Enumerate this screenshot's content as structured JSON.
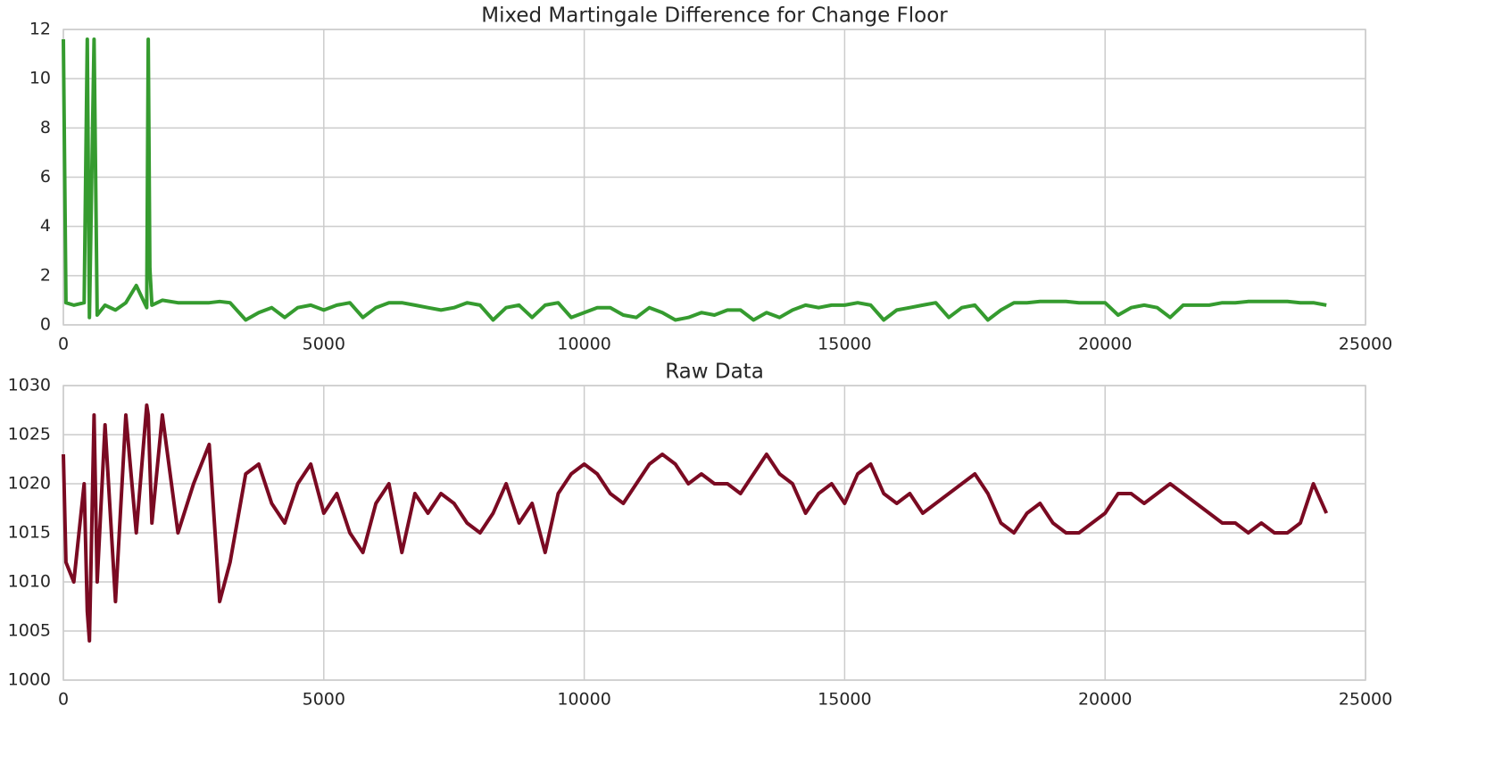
{
  "chart_data": [
    {
      "type": "line",
      "title": "Mixed Martingale Difference for Change Floor",
      "x": [
        0,
        50,
        200,
        400,
        460,
        500,
        590,
        650,
        800,
        1000,
        1200,
        1400,
        1600,
        1630,
        1660,
        1700,
        1900,
        2200,
        2500,
        2800,
        3000,
        3200,
        3500,
        3750,
        4000,
        4250,
        4500,
        4750,
        5000,
        5250,
        5500,
        5750,
        6000,
        6250,
        6500,
        6750,
        7000,
        7250,
        7500,
        7750,
        8000,
        8250,
        8500,
        8750,
        9000,
        9250,
        9500,
        9750,
        10000,
        10250,
        10500,
        10750,
        11000,
        11250,
        11500,
        11750,
        12000,
        12250,
        12500,
        12750,
        13000,
        13250,
        13500,
        13750,
        14000,
        14250,
        14500,
        14750,
        15000,
        15250,
        15500,
        15750,
        16000,
        16250,
        16500,
        16750,
        17000,
        17250,
        17500,
        17750,
        18000,
        18250,
        18500,
        18750,
        19000,
        19250,
        19500,
        19750,
        20000,
        20250,
        20500,
        20750,
        21000,
        21250,
        21500,
        21750,
        22000,
        22250,
        22500,
        22750,
        23000,
        23250,
        23500,
        23750,
        24000,
        24250
      ],
      "series": [
        {
          "color": "#359b2f",
          "values": [
            11.6,
            0.9,
            0.8,
            0.9,
            11.6,
            0.3,
            11.6,
            0.4,
            0.8,
            0.6,
            0.9,
            1.6,
            0.7,
            11.6,
            2.3,
            0.8,
            1.0,
            0.9,
            0.9,
            0.9,
            0.95,
            0.9,
            0.2,
            0.5,
            0.7,
            0.3,
            0.7,
            0.8,
            0.6,
            0.8,
            0.9,
            0.3,
            0.7,
            0.9,
            0.9,
            0.8,
            0.7,
            0.6,
            0.7,
            0.9,
            0.8,
            0.2,
            0.7,
            0.8,
            0.3,
            0.8,
            0.9,
            0.3,
            0.5,
            0.7,
            0.7,
            0.4,
            0.3,
            0.7,
            0.5,
            0.2,
            0.3,
            0.5,
            0.4,
            0.6,
            0.6,
            0.2,
            0.5,
            0.3,
            0.6,
            0.8,
            0.7,
            0.8,
            0.8,
            0.9,
            0.8,
            0.2,
            0.6,
            0.7,
            0.8,
            0.9,
            0.3,
            0.7,
            0.8,
            0.2,
            0.6,
            0.9,
            0.9,
            0.95,
            0.95,
            0.95,
            0.9,
            0.9,
            0.9,
            0.4,
            0.7,
            0.8,
            0.7,
            0.3,
            0.8,
            0.8,
            0.8,
            0.9,
            0.9,
            0.95,
            0.95,
            0.95,
            0.95,
            0.9,
            0.9,
            0.8
          ]
        }
      ],
      "xlim": [
        0,
        25000
      ],
      "xticks": [
        0,
        5000,
        10000,
        15000,
        20000,
        25000
      ],
      "ylim": [
        0,
        12
      ],
      "yticks": [
        0,
        2,
        4,
        6,
        8,
        10,
        12
      ],
      "grid": true
    },
    {
      "type": "line",
      "title": "Raw Data",
      "x": [
        0,
        50,
        200,
        400,
        460,
        500,
        590,
        650,
        800,
        1000,
        1200,
        1400,
        1600,
        1630,
        1660,
        1700,
        1900,
        2200,
        2500,
        2800,
        3000,
        3200,
        3500,
        3750,
        4000,
        4250,
        4500,
        4750,
        5000,
        5250,
        5500,
        5750,
        6000,
        6250,
        6500,
        6750,
        7000,
        7250,
        7500,
        7750,
        8000,
        8250,
        8500,
        8750,
        9000,
        9250,
        9500,
        9750,
        10000,
        10250,
        10500,
        10750,
        11000,
        11250,
        11500,
        11750,
        12000,
        12250,
        12500,
        12750,
        13000,
        13250,
        13500,
        13750,
        14000,
        14250,
        14500,
        14750,
        15000,
        15250,
        15500,
        15750,
        16000,
        16250,
        16500,
        16750,
        17000,
        17250,
        17500,
        17750,
        18000,
        18250,
        18500,
        18750,
        19000,
        19250,
        19500,
        19750,
        20000,
        20250,
        20500,
        20750,
        21000,
        21250,
        21500,
        21750,
        22000,
        22250,
        22500,
        22750,
        23000,
        23250,
        23500,
        23750,
        24000,
        24250
      ],
      "series": [
        {
          "color": "#7a0a22",
          "values": [
            1023,
            1012,
            1010,
            1020,
            1007,
            1004,
            1027,
            1010,
            1026,
            1008,
            1027,
            1015,
            1028,
            1027,
            1022,
            1016,
            1027,
            1015,
            1020,
            1024,
            1008,
            1012,
            1021,
            1022,
            1018,
            1016,
            1020,
            1022,
            1017,
            1019,
            1015,
            1013,
            1018,
            1020,
            1013,
            1019,
            1017,
            1019,
            1018,
            1016,
            1015,
            1017,
            1020,
            1016,
            1018,
            1013,
            1019,
            1021,
            1022,
            1021,
            1019,
            1018,
            1020,
            1022,
            1023,
            1022,
            1020,
            1021,
            1020,
            1020,
            1019,
            1021,
            1023,
            1021,
            1020,
            1017,
            1019,
            1020,
            1018,
            1021,
            1022,
            1019,
            1018,
            1019,
            1017,
            1018,
            1019,
            1020,
            1021,
            1019,
            1016,
            1015,
            1017,
            1018,
            1016,
            1015,
            1015,
            1016,
            1017,
            1019,
            1019,
            1018,
            1019,
            1020,
            1019,
            1018,
            1017,
            1016,
            1016,
            1015,
            1016,
            1015,
            1015,
            1016,
            1020,
            1017
          ]
        }
      ],
      "xlim": [
        0,
        25000
      ],
      "xticks": [
        0,
        5000,
        10000,
        15000,
        20000,
        25000
      ],
      "ylim": [
        1000,
        1030
      ],
      "yticks": [
        1000,
        1005,
        1010,
        1015,
        1020,
        1025,
        1030
      ],
      "grid": true
    }
  ]
}
